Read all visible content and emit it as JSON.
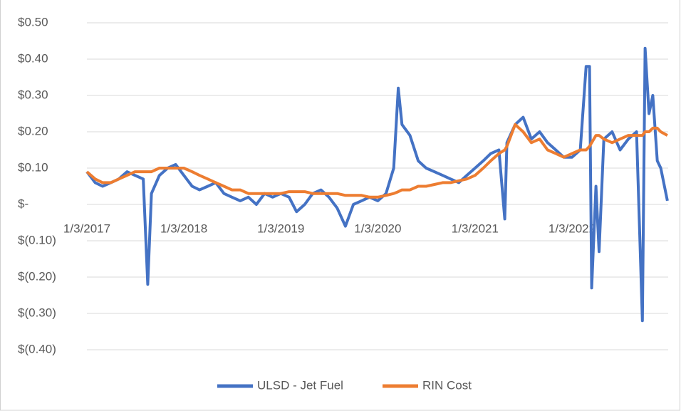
{
  "chart_data": {
    "type": "line",
    "x": [
      "1/3/2017",
      "2/3/2017",
      "3/3/2017",
      "4/3/2017",
      "5/3/2017",
      "6/3/2017",
      "7/3/2017",
      "8/3/2017",
      "8/20/2017",
      "9/3/2017",
      "10/3/2017",
      "11/3/2017",
      "12/3/2017",
      "1/3/2018",
      "2/3/2018",
      "3/3/2018",
      "4/3/2018",
      "5/3/2018",
      "6/3/2018",
      "7/3/2018",
      "8/3/2018",
      "9/3/2018",
      "10/3/2018",
      "11/3/2018",
      "12/3/2018",
      "1/3/2019",
      "2/3/2019",
      "3/3/2019",
      "4/3/2019",
      "5/3/2019",
      "6/3/2019",
      "7/3/2019",
      "8/3/2019",
      "9/3/2019",
      "10/3/2019",
      "11/3/2019",
      "12/3/2019",
      "1/3/2020",
      "2/3/2020",
      "3/3/2020",
      "3/20/2020",
      "4/3/2020",
      "5/3/2020",
      "6/3/2020",
      "7/3/2020",
      "8/3/2020",
      "9/3/2020",
      "10/3/2020",
      "11/3/2020",
      "12/3/2020",
      "1/3/2021",
      "2/3/2021",
      "3/3/2021",
      "4/3/2021",
      "4/25/2021",
      "5/3/2021",
      "6/3/2021",
      "7/3/2021",
      "8/3/2021",
      "9/3/2021",
      "10/3/2021",
      "11/3/2021",
      "12/3/2021",
      "1/3/2022",
      "2/3/2022",
      "2/25/2022",
      "3/10/2022",
      "3/18/2022",
      "4/3/2022",
      "4/15/2022",
      "5/3/2022",
      "6/3/2022",
      "7/3/2022",
      "8/3/2022",
      "9/3/2022",
      "9/25/2022",
      "10/5/2022",
      "10/20/2022",
      "11/3/2022",
      "11/20/2022",
      "12/3/2022",
      "12/28/2022"
    ],
    "series": [
      {
        "name": "ULSD - Jet Fuel",
        "color": "#4472c4",
        "values": [
          0.09,
          0.06,
          0.05,
          0.06,
          0.07,
          0.09,
          0.08,
          0.07,
          -0.22,
          0.03,
          0.08,
          0.1,
          0.11,
          0.08,
          0.05,
          0.04,
          0.05,
          0.06,
          0.03,
          0.02,
          0.01,
          0.02,
          0.0,
          0.03,
          0.02,
          0.03,
          0.02,
          -0.02,
          0.0,
          0.03,
          0.04,
          0.02,
          -0.01,
          -0.06,
          0.0,
          0.01,
          0.02,
          0.01,
          0.03,
          0.1,
          0.32,
          0.22,
          0.19,
          0.12,
          0.1,
          0.09,
          0.08,
          0.07,
          0.06,
          0.08,
          0.1,
          0.12,
          0.14,
          0.15,
          -0.04,
          0.17,
          0.22,
          0.24,
          0.18,
          0.2,
          0.17,
          0.15,
          0.13,
          0.13,
          0.15,
          0.38,
          0.38,
          -0.23,
          0.05,
          -0.13,
          0.18,
          0.2,
          0.15,
          0.18,
          0.2,
          -0.32,
          0.43,
          0.25,
          0.3,
          0.12,
          0.1,
          0.01
        ]
      },
      {
        "name": "RIN Cost",
        "color": "#ed7d31",
        "values": [
          0.09,
          0.07,
          0.06,
          0.06,
          0.07,
          0.08,
          0.09,
          0.09,
          0.09,
          0.09,
          0.1,
          0.1,
          0.1,
          0.1,
          0.09,
          0.08,
          0.07,
          0.06,
          0.05,
          0.04,
          0.04,
          0.03,
          0.03,
          0.03,
          0.03,
          0.03,
          0.035,
          0.035,
          0.035,
          0.03,
          0.03,
          0.03,
          0.03,
          0.025,
          0.025,
          0.025,
          0.02,
          0.02,
          0.025,
          0.03,
          0.035,
          0.04,
          0.04,
          0.05,
          0.05,
          0.055,
          0.06,
          0.06,
          0.065,
          0.07,
          0.08,
          0.1,
          0.12,
          0.14,
          0.15,
          0.16,
          0.22,
          0.2,
          0.17,
          0.18,
          0.15,
          0.14,
          0.13,
          0.14,
          0.15,
          0.15,
          0.16,
          0.17,
          0.19,
          0.19,
          0.18,
          0.17,
          0.18,
          0.19,
          0.19,
          0.19,
          0.2,
          0.2,
          0.21,
          0.21,
          0.2,
          0.19
        ]
      }
    ],
    "xlim": [
      "1/3/2017",
      "12/31/2022"
    ],
    "xticks": [
      "1/3/2017",
      "1/3/2018",
      "1/3/2019",
      "1/3/2020",
      "1/3/2021",
      "1/3/2022"
    ],
    "ylim": [
      -0.4,
      0.5
    ],
    "yticks": [
      {
        "value": 0.5,
        "label": "$0.50"
      },
      {
        "value": 0.4,
        "label": "$0.40"
      },
      {
        "value": 0.3,
        "label": "$0.30"
      },
      {
        "value": 0.2,
        "label": "$0.20"
      },
      {
        "value": 0.1,
        "label": "$0.10"
      },
      {
        "value": 0,
        "label": "$-"
      },
      {
        "value": -0.1,
        "label": "$(0.10)"
      },
      {
        "value": -0.2,
        "label": "$(0.20)"
      },
      {
        "value": -0.3,
        "label": "$(0.30)"
      },
      {
        "value": -0.4,
        "label": "$(0.40)"
      }
    ],
    "grid": true,
    "legend": "bottom"
  }
}
